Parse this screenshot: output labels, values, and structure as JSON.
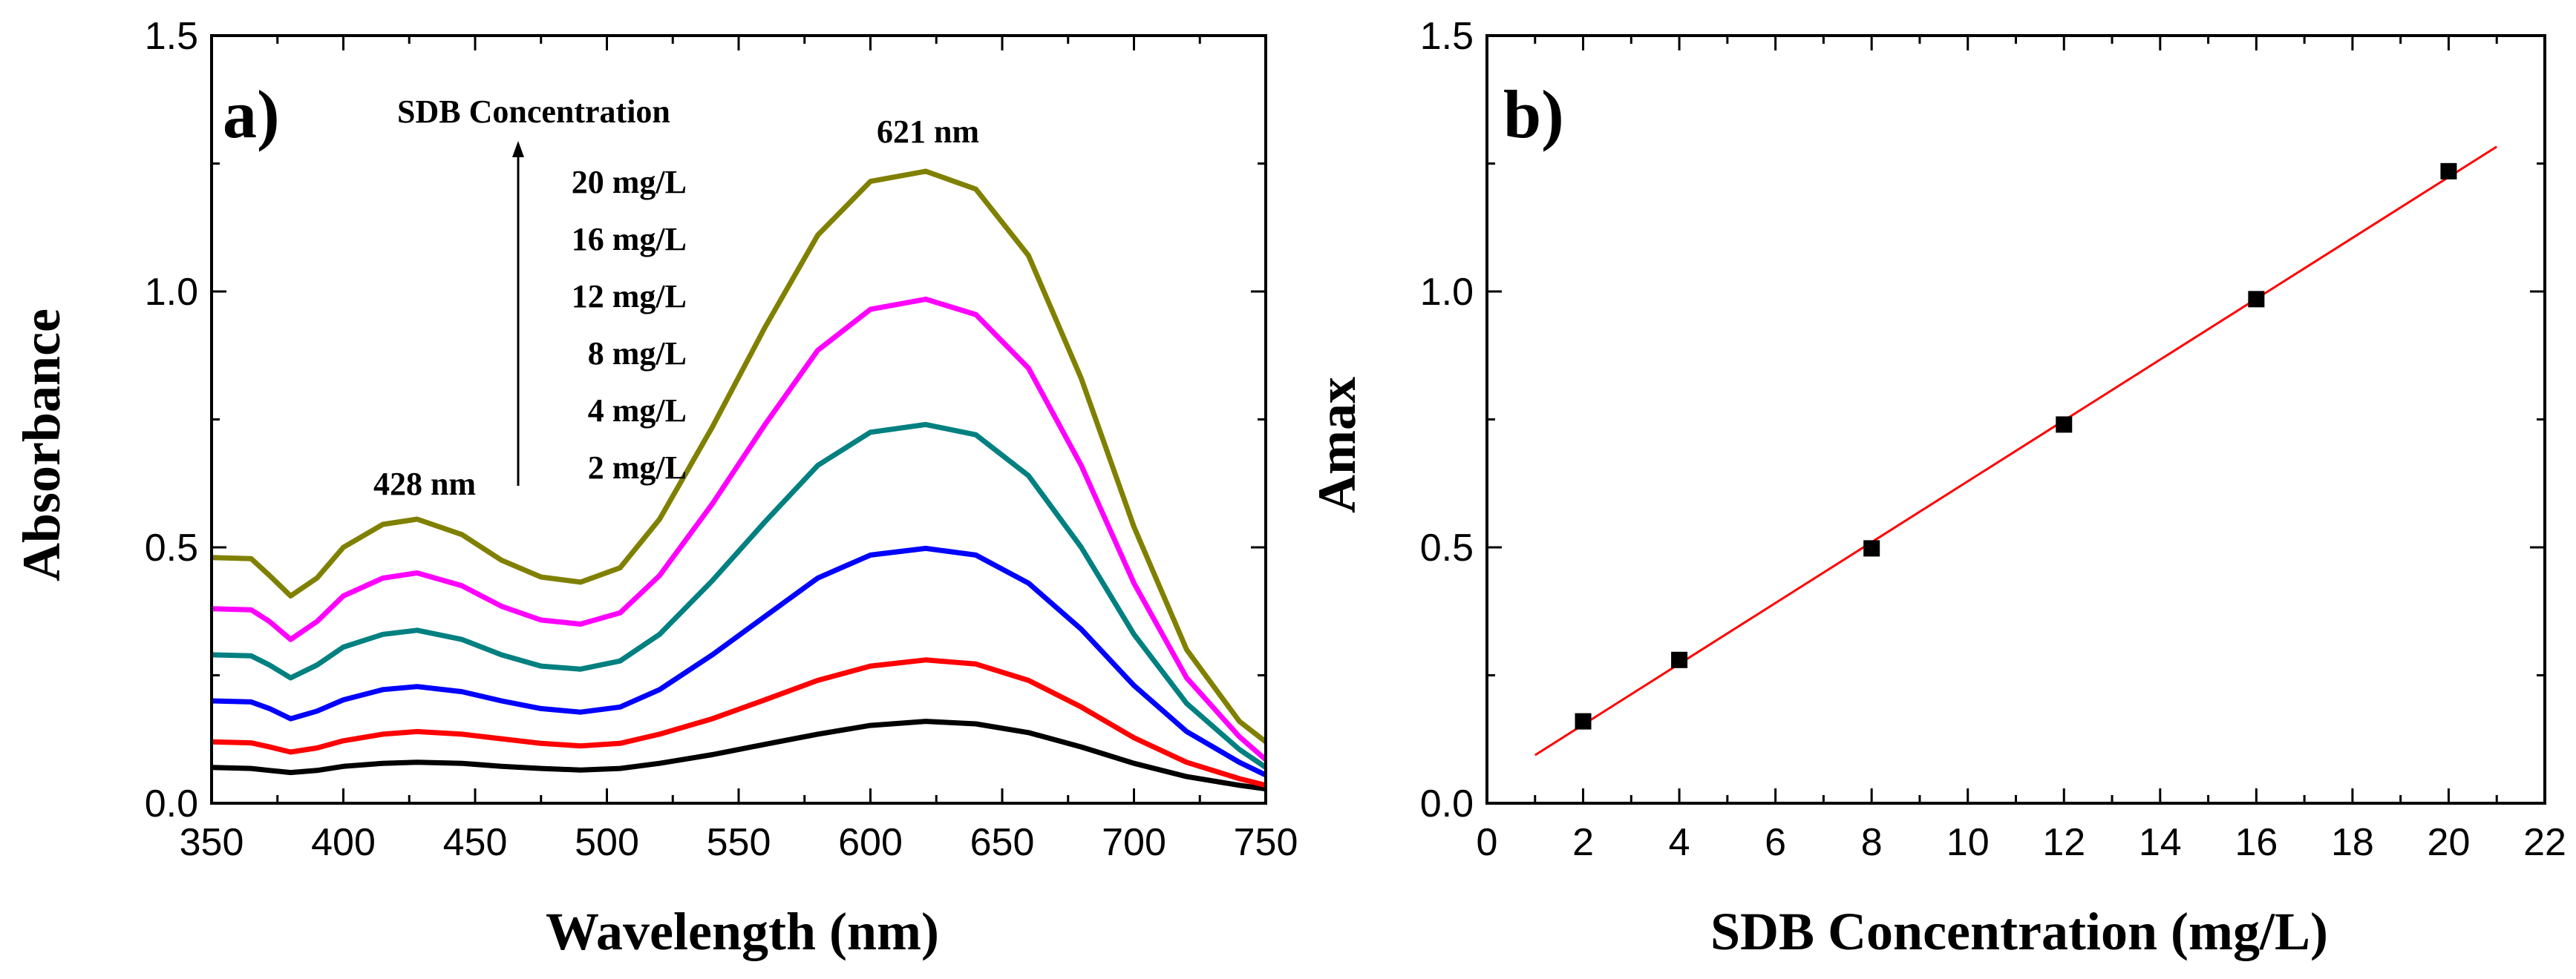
{
  "chart_data": [
    {
      "type": "line",
      "panel_label": "a)",
      "xlabel": "Wavelength (nm)",
      "ylabel": "Absorbance",
      "xlim": [
        350,
        750
      ],
      "ylim": [
        0.0,
        1.5
      ],
      "x_ticks": [
        "350",
        "400",
        "450",
        "500",
        "550",
        "600",
        "650",
        "700",
        "750"
      ],
      "y_ticks": [
        "0.0",
        "0.5",
        "1.0",
        "1.5"
      ],
      "legend_title": "SDB Concentration",
      "peak_labels": [
        "428 nm",
        "621 nm"
      ],
      "x": [
        350,
        365,
        372,
        380,
        390,
        400,
        415,
        428,
        445,
        460,
        475,
        490,
        505,
        520,
        540,
        560,
        580,
        600,
        621,
        640,
        660,
        680,
        700,
        720,
        740,
        750
      ],
      "series": [
        {
          "name": "2 mg/L",
          "color": "#000000",
          "values": [
            0.07,
            0.068,
            0.064,
            0.06,
            0.064,
            0.072,
            0.078,
            0.08,
            0.078,
            0.072,
            0.068,
            0.065,
            0.068,
            0.078,
            0.095,
            0.115,
            0.135,
            0.152,
            0.16,
            0.155,
            0.138,
            0.11,
            0.078,
            0.052,
            0.035,
            0.028
          ]
        },
        {
          "name": "4 mg/L",
          "color": "#ff0000",
          "values": [
            0.12,
            0.118,
            0.11,
            0.1,
            0.108,
            0.122,
            0.135,
            0.14,
            0.135,
            0.126,
            0.117,
            0.112,
            0.117,
            0.135,
            0.165,
            0.202,
            0.24,
            0.268,
            0.28,
            0.272,
            0.24,
            0.188,
            0.128,
            0.08,
            0.048,
            0.035
          ]
        },
        {
          "name": "8 mg/L",
          "color": "#0000ff",
          "values": [
            0.2,
            0.198,
            0.185,
            0.165,
            0.18,
            0.202,
            0.222,
            0.228,
            0.218,
            0.2,
            0.185,
            0.178,
            0.188,
            0.222,
            0.29,
            0.365,
            0.44,
            0.485,
            0.498,
            0.485,
            0.43,
            0.34,
            0.23,
            0.14,
            0.08,
            0.055
          ]
        },
        {
          "name": "12 mg/L",
          "color": "#008080",
          "values": [
            0.29,
            0.288,
            0.27,
            0.245,
            0.27,
            0.305,
            0.33,
            0.338,
            0.32,
            0.29,
            0.268,
            0.262,
            0.278,
            0.33,
            0.435,
            0.55,
            0.66,
            0.725,
            0.74,
            0.72,
            0.64,
            0.5,
            0.33,
            0.195,
            0.105,
            0.07
          ]
        },
        {
          "name": "16 mg/L",
          "color": "#ff00ff",
          "values": [
            0.38,
            0.378,
            0.355,
            0.32,
            0.355,
            0.405,
            0.44,
            0.45,
            0.425,
            0.385,
            0.358,
            0.35,
            0.372,
            0.445,
            0.585,
            0.74,
            0.885,
            0.965,
            0.985,
            0.955,
            0.85,
            0.66,
            0.43,
            0.245,
            0.13,
            0.085
          ]
        },
        {
          "name": "20 mg/L",
          "color": "#808000",
          "values": [
            0.48,
            0.478,
            0.445,
            0.405,
            0.44,
            0.5,
            0.545,
            0.555,
            0.525,
            0.475,
            0.442,
            0.432,
            0.46,
            0.555,
            0.735,
            0.93,
            1.11,
            1.215,
            1.235,
            1.2,
            1.07,
            0.83,
            0.54,
            0.3,
            0.16,
            0.12
          ]
        }
      ]
    },
    {
      "type": "scatter",
      "panel_label": "b)",
      "xlabel": "SDB Concentration (mg/L)",
      "ylabel": "Amax",
      "xlim": [
        0,
        22
      ],
      "ylim": [
        0.0,
        1.5
      ],
      "x_ticks": [
        "0",
        "2",
        "4",
        "6",
        "8",
        "10",
        "12",
        "14",
        "16",
        "18",
        "20",
        "22"
      ],
      "y_ticks": [
        "0.0",
        "0.5",
        "1.0",
        "1.5"
      ],
      "points": {
        "x": [
          2,
          4,
          8,
          12,
          16,
          20
        ],
        "y": [
          0.16,
          0.28,
          0.498,
          0.74,
          0.985,
          1.235
        ],
        "color": "#000000"
      },
      "fit_line": {
        "x": [
          1,
          21
        ],
        "y": [
          0.094,
          1.283
        ],
        "color": "#ff0000"
      }
    }
  ]
}
